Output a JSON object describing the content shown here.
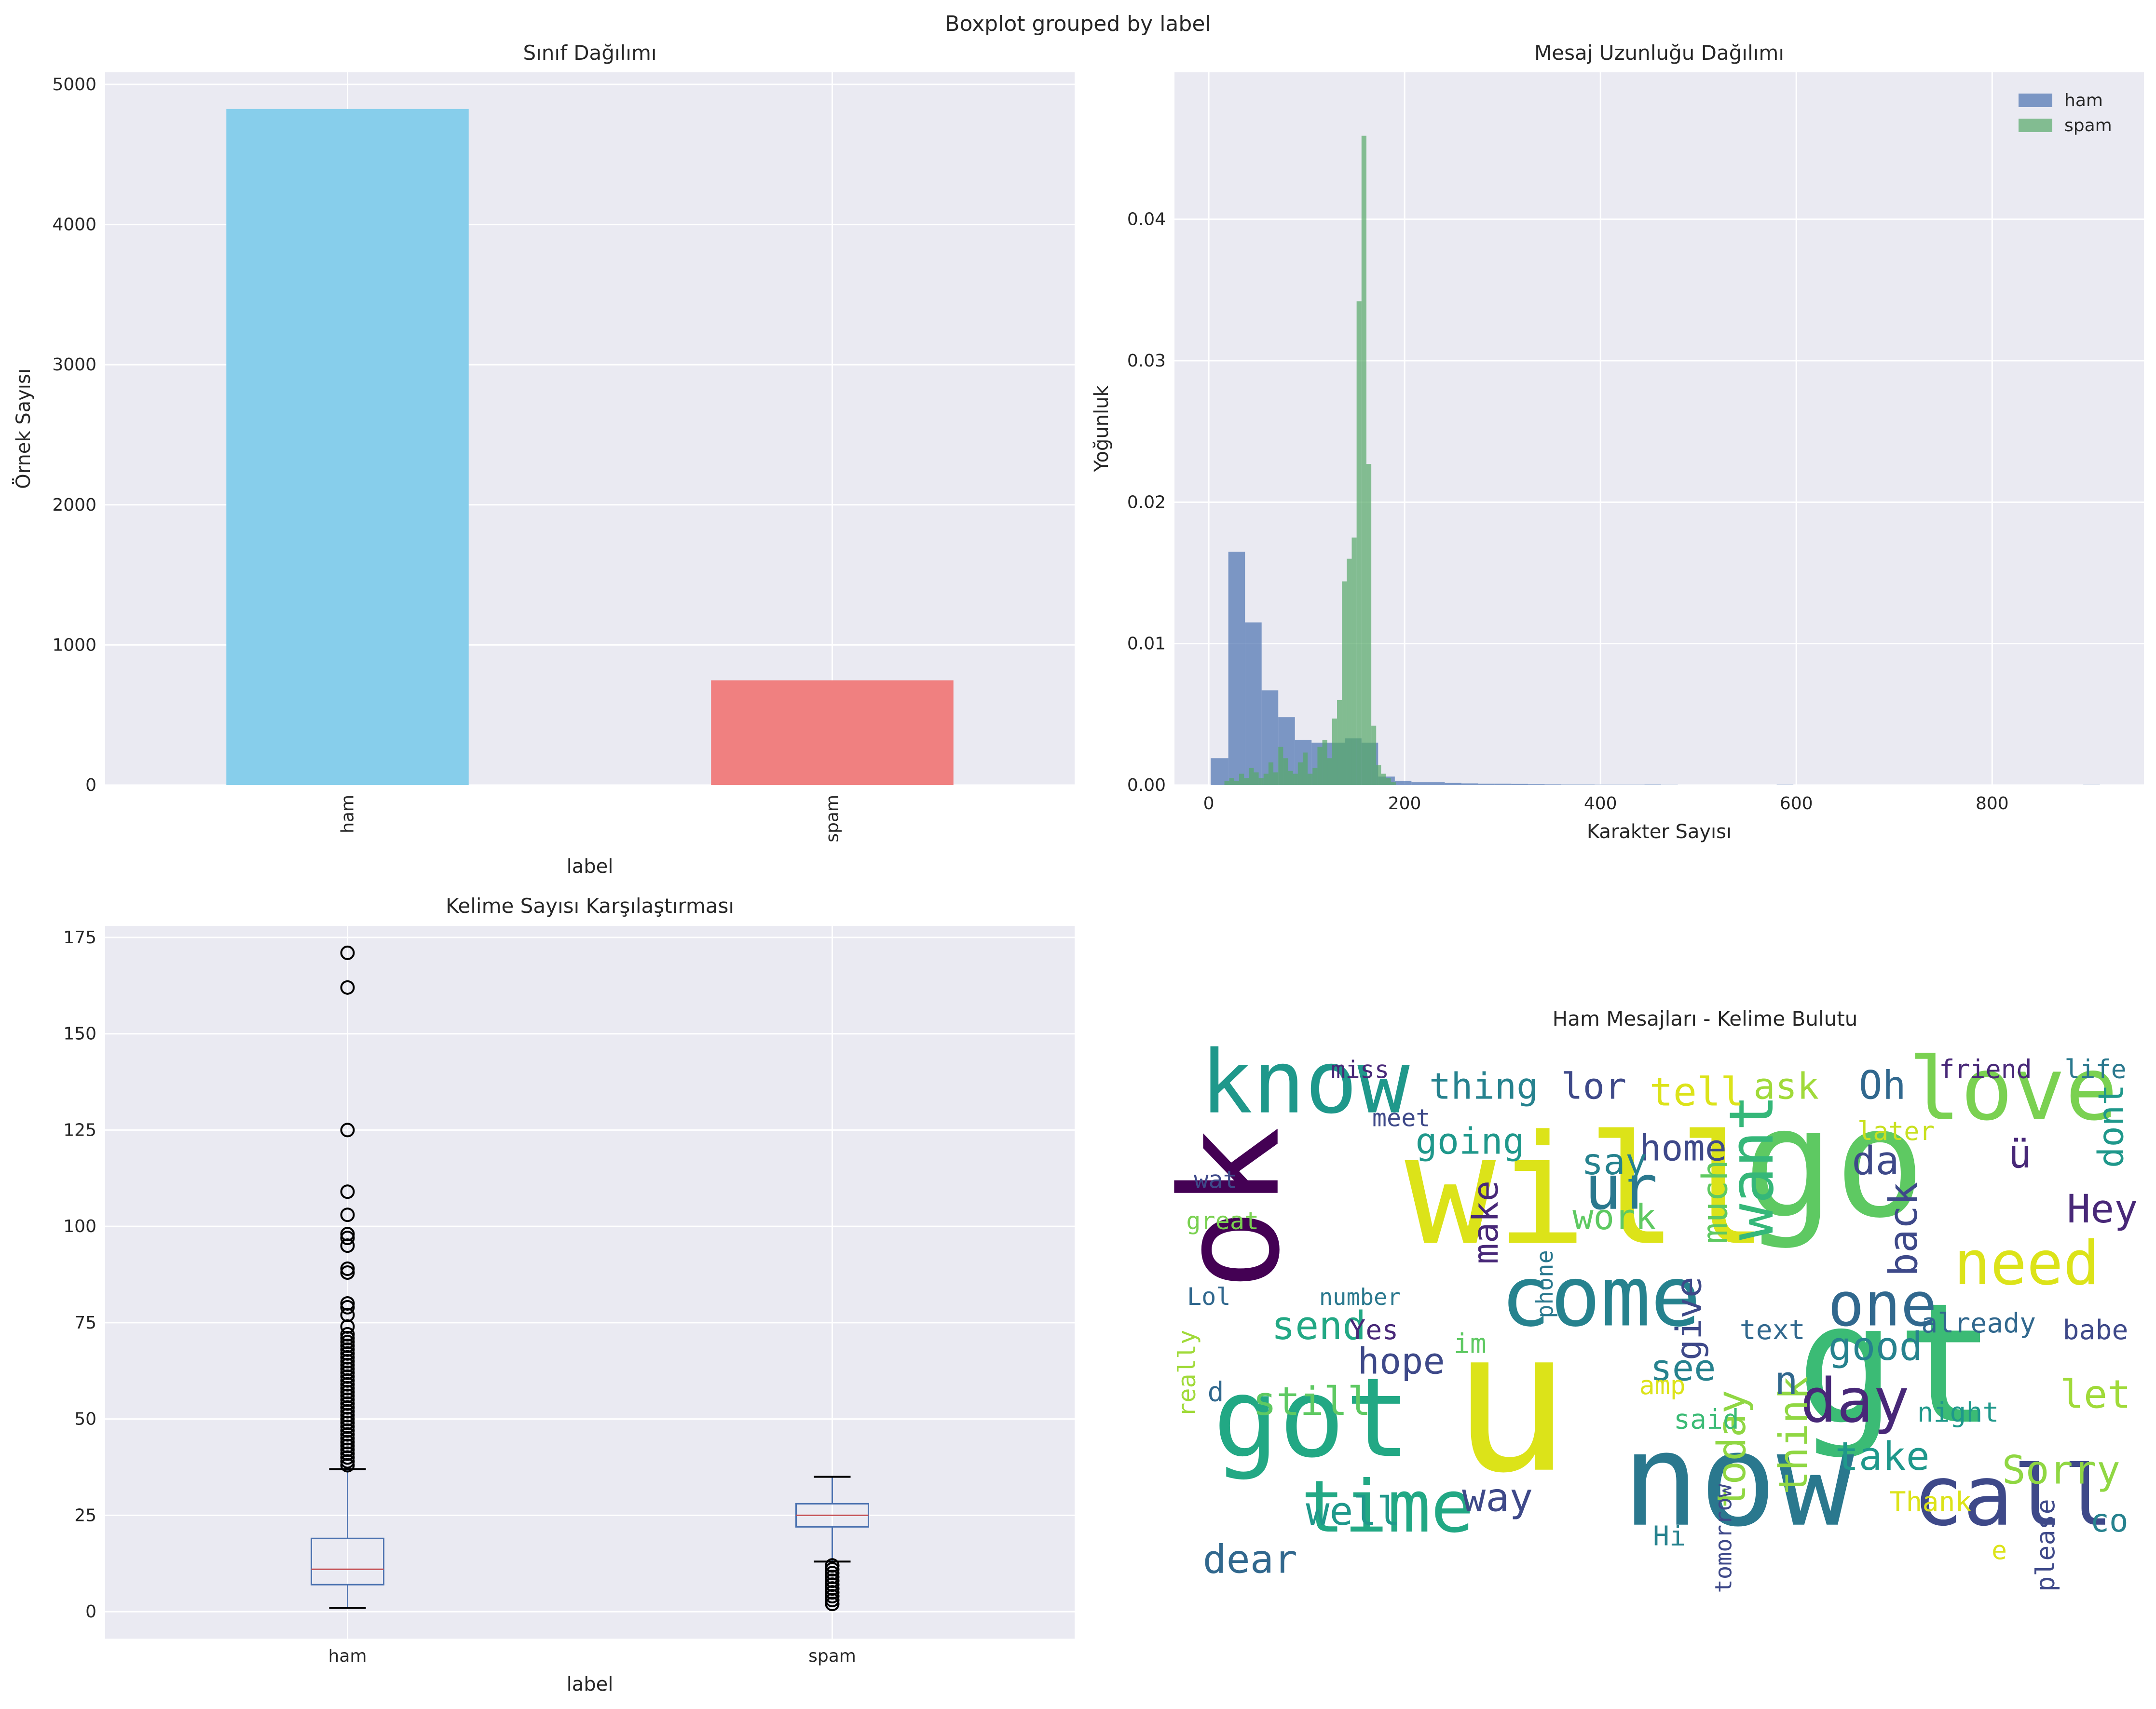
{
  "figure": {
    "suptitle": "Boxplot grouped by label"
  },
  "chart_data": [
    {
      "type": "bar",
      "title": "Sınıf Dağılımı",
      "xlabel": "label",
      "ylabel": "Örnek Sayısı",
      "categories": [
        "ham",
        "spam"
      ],
      "values": [
        4825,
        747
      ],
      "colors": [
        "#87ceeb",
        "#f08080"
      ],
      "ylim": [
        0,
        5000
      ],
      "yticks": [
        0,
        1000,
        2000,
        3000,
        4000,
        5000
      ],
      "grid": true
    },
    {
      "type": "histogram",
      "title": "Mesaj Uzunluğu Dağılımı",
      "xlabel": "Karakter Sayısı",
      "ylabel": "Yoğunluk",
      "xlim": [
        -35,
        955
      ],
      "ylim": [
        0,
        0.048
      ],
      "xticks": [
        0,
        200,
        400,
        600,
        800
      ],
      "yticks": [
        0.0,
        0.01,
        0.02,
        0.03,
        0.04
      ],
      "legend": "top-right",
      "grid": true,
      "series": [
        {
          "name": "ham",
          "color": "#4c72b0",
          "bins": [
            [
              2,
              20,
              0.0019
            ],
            [
              20,
              37,
              0.0165
            ],
            [
              37,
              54,
              0.0115
            ],
            [
              54,
              71,
              0.0067
            ],
            [
              71,
              88,
              0.0048
            ],
            [
              88,
              105,
              0.0032
            ],
            [
              105,
              122,
              0.003
            ],
            [
              122,
              139,
              0.003
            ],
            [
              139,
              156,
              0.0033
            ],
            [
              156,
              173,
              0.003
            ],
            [
              173,
              190,
              0.0006
            ],
            [
              190,
              207,
              0.0003
            ],
            [
              207,
              224,
              0.0002
            ],
            [
              224,
              241,
              0.0002
            ],
            [
              241,
              258,
              0.00015
            ],
            [
              258,
              275,
              0.00012
            ],
            [
              275,
              292,
              0.0001
            ],
            [
              292,
              309,
              0.0001
            ],
            [
              309,
              326,
              8e-05
            ],
            [
              326,
              343,
              6e-05
            ],
            [
              343,
              360,
              5e-05
            ],
            [
              360,
              377,
              4e-05
            ],
            [
              377,
              394,
              4e-05
            ],
            [
              394,
              411,
              3e-05
            ],
            [
              411,
              428,
              3e-05
            ],
            [
              428,
              445,
              3e-05
            ],
            [
              445,
              462,
              4e-05
            ],
            [
              462,
              479,
              2e-05
            ],
            [
              580,
              597,
              3e-05
            ],
            [
              893,
              910,
              2e-05
            ]
          ]
        },
        {
          "name": "spam",
          "color": "#55a868",
          "bins": [
            [
              16,
              21,
              0.0003
            ],
            [
              21,
              26,
              0.0005
            ],
            [
              26,
              31,
              0.0003
            ],
            [
              31,
              36,
              0.0008
            ],
            [
              36,
              41,
              0.0005
            ],
            [
              41,
              46,
              0.0012
            ],
            [
              46,
              51,
              0.0009
            ],
            [
              51,
              56,
              0.0005
            ],
            [
              56,
              61,
              0.0008
            ],
            [
              61,
              66,
              0.0016
            ],
            [
              66,
              71,
              0.0009
            ],
            [
              71,
              76,
              0.0027
            ],
            [
              76,
              81,
              0.0019
            ],
            [
              81,
              86,
              0.001
            ],
            [
              86,
              91,
              0.0008
            ],
            [
              91,
              96,
              0.0016
            ],
            [
              96,
              101,
              0.0023
            ],
            [
              101,
              106,
              0.0008
            ],
            [
              106,
              111,
              0.0012
            ],
            [
              111,
              116,
              0.0027
            ],
            [
              116,
              121,
              0.0032
            ],
            [
              121,
              126,
              0.0019
            ],
            [
              126,
              131,
              0.0047
            ],
            [
              131,
              136,
              0.006
            ],
            [
              136,
              141,
              0.0144
            ],
            [
              141,
              146,
              0.016
            ],
            [
              146,
              151,
              0.0175
            ],
            [
              151,
              156,
              0.0342
            ],
            [
              156,
              161,
              0.0459
            ],
            [
              161,
              166,
              0.0227
            ],
            [
              166,
              171,
              0.0042
            ],
            [
              171,
              176,
              0.0014
            ],
            [
              176,
              181,
              0.0008
            ],
            [
              181,
              186,
              0.0005
            ],
            [
              186,
              191,
              0.0002
            ]
          ]
        }
      ]
    },
    {
      "type": "box",
      "title": "Kelime Sayısı Karşılaştırması",
      "xlabel": "label",
      "categories": [
        "ham",
        "spam"
      ],
      "ylim": [
        -7,
        178
      ],
      "yticks": [
        0,
        25,
        50,
        75,
        100,
        125,
        150,
        175
      ],
      "grid": true,
      "boxes": [
        {
          "name": "ham",
          "whislo": 1,
          "q1": 7,
          "median": 11,
          "q3": 19,
          "whishi": 37,
          "fliers": [
            38,
            39,
            40,
            41,
            42,
            43,
            44,
            45,
            46,
            47,
            48,
            49,
            50,
            51,
            52,
            53,
            54,
            55,
            56,
            57,
            58,
            59,
            60,
            61,
            62,
            63,
            64,
            65,
            66,
            67,
            68,
            69,
            70,
            71,
            72,
            74,
            77,
            79,
            80,
            88,
            89,
            95,
            97,
            98,
            103,
            109,
            125,
            162,
            171
          ]
        },
        {
          "name": "spam",
          "whislo": 13,
          "q1": 22,
          "median": 25,
          "q3": 28,
          "whishi": 35,
          "fliers": [
            2,
            3,
            4,
            5,
            6,
            7,
            8,
            9,
            10,
            11,
            12
          ]
        }
      ]
    }
  ],
  "wordcloud": {
    "title": "Ham Mesajları - Kelime Bulutu",
    "words": [
      {
        "text": "u",
        "size": 260,
        "x": 1100,
        "y": 1070,
        "color": "#dce319"
      },
      {
        "text": "will",
        "size": 200,
        "x": 1155,
        "y": 905,
        "color": "#dce319"
      },
      {
        "text": "gt",
        "size": 220,
        "x": 1380,
        "y": 1035,
        "color": "#3bbb75"
      },
      {
        "text": "go",
        "size": 200,
        "x": 1335,
        "y": 885,
        "color": "#5ec962"
      },
      {
        "text": "now",
        "size": 170,
        "x": 1265,
        "y": 1110,
        "color": "#2a788e"
      },
      {
        "text": "ok",
        "size": 180,
        "x": 930,
        "y": 880,
        "color": "#440154",
        "rotate": true
      },
      {
        "text": "got",
        "size": 145,
        "x": 955,
        "y": 1060,
        "color": "#22a884"
      },
      {
        "text": "know",
        "size": 115,
        "x": 950,
        "y": 810,
        "color": "#1f988b"
      },
      {
        "text": "love",
        "size": 115,
        "x": 1465,
        "y": 815,
        "color": "#7ad151"
      },
      {
        "text": "come",
        "size": 110,
        "x": 1165,
        "y": 965,
        "color": "#26828e"
      },
      {
        "text": "call",
        "size": 110,
        "x": 1465,
        "y": 1110,
        "color": "#3e4989"
      },
      {
        "text": "time",
        "size": 95,
        "x": 1010,
        "y": 1115,
        "color": "#22a884"
      },
      {
        "text": "need",
        "size": 80,
        "x": 1475,
        "y": 935,
        "color": "#dce319"
      },
      {
        "text": "day",
        "size": 80,
        "x": 1350,
        "y": 1035,
        "color": "#482878"
      },
      {
        "text": "one",
        "size": 80,
        "x": 1370,
        "y": 965,
        "color": "#31688e"
      },
      {
        "text": "want",
        "size": 80,
        "x": 1290,
        "y": 850,
        "color": "#35b779",
        "rotate": true
      },
      {
        "text": "ur",
        "size": 80,
        "x": 1180,
        "y": 880,
        "color": "#2a788e"
      },
      {
        "text": "today",
        "size": 52,
        "x": 1270,
        "y": 1055,
        "color": "#90d743",
        "rotate": true
      },
      {
        "text": "think",
        "size": 52,
        "x": 1315,
        "y": 1045,
        "color": "#90d743",
        "rotate": true
      },
      {
        "text": "going",
        "size": 48,
        "x": 1070,
        "y": 840,
        "color": "#1f988b"
      },
      {
        "text": "thing",
        "size": 48,
        "x": 1080,
        "y": 800,
        "color": "#26828e"
      },
      {
        "text": "lor",
        "size": 48,
        "x": 1160,
        "y": 800,
        "color": "#3e4989"
      },
      {
        "text": "tell",
        "size": 52,
        "x": 1235,
        "y": 805,
        "color": "#dce319"
      },
      {
        "text": "ask",
        "size": 48,
        "x": 1300,
        "y": 800,
        "color": "#a0da39"
      },
      {
        "text": "Oh",
        "size": 52,
        "x": 1370,
        "y": 800,
        "color": "#31688e"
      },
      {
        "text": "home",
        "size": 48,
        "x": 1225,
        "y": 845,
        "color": "#3e4989"
      },
      {
        "text": "say",
        "size": 48,
        "x": 1175,
        "y": 855,
        "color": "#26828e"
      },
      {
        "text": "da",
        "size": 52,
        "x": 1365,
        "y": 855,
        "color": "#3e4989"
      },
      {
        "text": "make",
        "size": 46,
        "x": 1090,
        "y": 890,
        "color": "#482878",
        "rotate": true
      },
      {
        "text": "work",
        "size": 46,
        "x": 1175,
        "y": 895,
        "color": "#5ec962"
      },
      {
        "text": "much",
        "size": 46,
        "x": 1257,
        "y": 875,
        "color": "#5ec962",
        "rotate": true
      },
      {
        "text": "back",
        "size": 52,
        "x": 1395,
        "y": 895,
        "color": "#3e4989",
        "rotate": true
      },
      {
        "text": "Hey",
        "size": 52,
        "x": 1530,
        "y": 890,
        "color": "#482878"
      },
      {
        "text": "dont",
        "size": 46,
        "x": 1545,
        "y": 820,
        "color": "#1f988b",
        "rotate": true
      },
      {
        "text": "friend",
        "size": 34,
        "x": 1445,
        "y": 785,
        "color": "#482878"
      },
      {
        "text": "life",
        "size": 34,
        "x": 1525,
        "y": 785,
        "color": "#2a788e"
      },
      {
        "text": "later",
        "size": 34,
        "x": 1380,
        "y": 830,
        "color": "#c8e020"
      },
      {
        "text": "send",
        "size": 52,
        "x": 960,
        "y": 975,
        "color": "#22a884"
      },
      {
        "text": "still",
        "size": 52,
        "x": 955,
        "y": 1030,
        "color": "#5ec962"
      },
      {
        "text": "hope",
        "size": 48,
        "x": 1020,
        "y": 1000,
        "color": "#3e4989"
      },
      {
        "text": "see",
        "size": 48,
        "x": 1225,
        "y": 1005,
        "color": "#26828e"
      },
      {
        "text": "give",
        "size": 46,
        "x": 1238,
        "y": 960,
        "color": "#3e4989",
        "rotate": true
      },
      {
        "text": "good",
        "size": 52,
        "x": 1365,
        "y": 990,
        "color": "#26828e"
      },
      {
        "text": "let",
        "size": 52,
        "x": 1525,
        "y": 1025,
        "color": "#a0da39"
      },
      {
        "text": "way",
        "size": 52,
        "x": 1090,
        "y": 1100,
        "color": "#3e4989"
      },
      {
        "text": "well",
        "size": 52,
        "x": 985,
        "y": 1110,
        "color": "#1f988b"
      },
      {
        "text": "dear",
        "size": 52,
        "x": 910,
        "y": 1145,
        "color": "#31688e"
      },
      {
        "text": "take",
        "size": 52,
        "x": 1370,
        "y": 1070,
        "color": "#1f988b"
      },
      {
        "text": "Sorry",
        "size": 52,
        "x": 1500,
        "y": 1080,
        "color": "#90d743"
      },
      {
        "text": "n",
        "size": 52,
        "x": 1300,
        "y": 1015,
        "color": "#31688e"
      },
      {
        "text": "already",
        "size": 36,
        "x": 1440,
        "y": 970,
        "color": "#31688e"
      },
      {
        "text": "babe",
        "size": 36,
        "x": 1525,
        "y": 975,
        "color": "#3e4989"
      },
      {
        "text": "text",
        "size": 36,
        "x": 1290,
        "y": 975,
        "color": "#31688e"
      },
      {
        "text": "night",
        "size": 36,
        "x": 1425,
        "y": 1035,
        "color": "#1f988b"
      },
      {
        "text": "said",
        "size": 36,
        "x": 1242,
        "y": 1040,
        "color": "#3bbb75"
      },
      {
        "text": "Thank",
        "size": 36,
        "x": 1405,
        "y": 1100,
        "color": "#dce319"
      },
      {
        "text": "please",
        "size": 34,
        "x": 1495,
        "y": 1125,
        "color": "#3e4989",
        "rotate": true
      },
      {
        "text": "co",
        "size": 42,
        "x": 1535,
        "y": 1115,
        "color": "#26828e"
      },
      {
        "text": "Hi",
        "size": 36,
        "x": 1215,
        "y": 1125,
        "color": "#26828e"
      },
      {
        "text": "tomorrow",
        "size": 30,
        "x": 1260,
        "y": 1120,
        "color": "#3e4989",
        "rotate": true
      },
      {
        "text": "im",
        "size": 36,
        "x": 1070,
        "y": 985,
        "color": "#5ec962"
      },
      {
        "text": "Yes",
        "size": 36,
        "x": 1000,
        "y": 975,
        "color": "#482878"
      },
      {
        "text": "amp",
        "size": 34,
        "x": 1210,
        "y": 1015,
        "color": "#dce319"
      },
      {
        "text": "really",
        "size": 32,
        "x": 870,
        "y": 1000,
        "color": "#a0da39",
        "rotate": true
      },
      {
        "text": "d",
        "size": 36,
        "x": 885,
        "y": 1020,
        "color": "#31688e"
      },
      {
        "text": "wat",
        "size": 32,
        "x": 885,
        "y": 865,
        "color": "#3e4989"
      },
      {
        "text": "great",
        "size": 32,
        "x": 890,
        "y": 895,
        "color": "#7ad151"
      },
      {
        "text": "miss",
        "size": 32,
        "x": 990,
        "y": 785,
        "color": "#482878"
      },
      {
        "text": "meet",
        "size": 32,
        "x": 1020,
        "y": 820,
        "color": "#3e4989"
      },
      {
        "text": "Lol",
        "size": 32,
        "x": 880,
        "y": 950,
        "color": "#31688e"
      },
      {
        "text": "number",
        "size": 30,
        "x": 990,
        "y": 950,
        "color": "#2a788e"
      },
      {
        "text": "phone",
        "size": 30,
        "x": 1130,
        "y": 935,
        "color": "#2a788e",
        "rotate": true
      },
      {
        "text": "ü",
        "size": 52,
        "x": 1470,
        "y": 850,
        "color": "#482878"
      },
      {
        "text": "e",
        "size": 34,
        "x": 1455,
        "y": 1135,
        "color": "#dce319"
      }
    ]
  }
}
